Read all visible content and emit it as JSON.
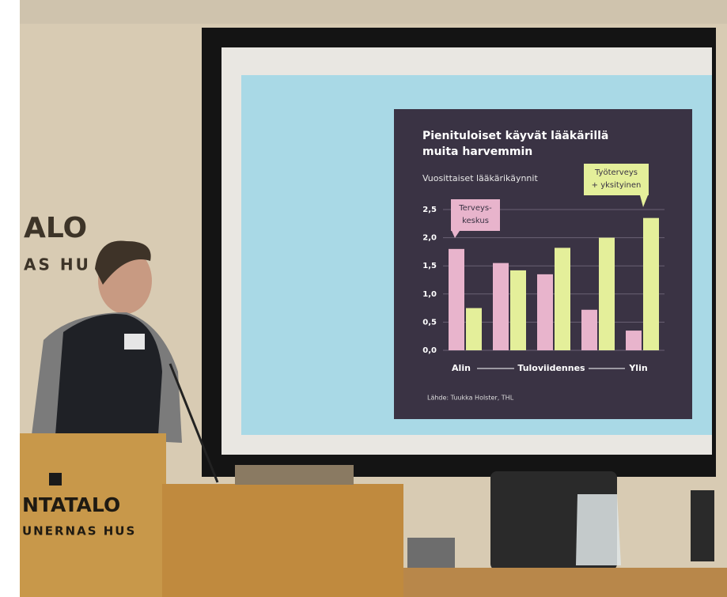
{
  "scene": {
    "wall_sign": [
      "ALO",
      "AS HU"
    ],
    "podium_sign": [
      "NTATALO",
      "UNERNAS HUS"
    ]
  },
  "chart_data": {
    "type": "bar",
    "title": [
      "Pienituloiset käyvät lääkärillä",
      "muita harvemmin"
    ],
    "subtitle": "Vuosittaiset lääkärikäynnit",
    "categories": [
      null,
      null,
      null,
      null,
      null
    ],
    "series": [
      {
        "label": [
          "Terveys-",
          "keskus"
        ],
        "color": "#e8b4cc",
        "values": [
          1.8,
          1.55,
          1.35,
          0.72,
          0.35
        ]
      },
      {
        "label": [
          "Työterveys",
          "+ yksityinen"
        ],
        "color": "#e4ef9a",
        "values": [
          0.75,
          1.42,
          1.82,
          2.0,
          2.35
        ]
      }
    ],
    "x_axis_labels": [
      "Alin",
      "Tuloviidennes",
      "Ylin"
    ],
    "ylim": [
      0,
      2.5
    ],
    "yticks": [
      {
        "value": 0,
        "label": "0,0"
      },
      {
        "value": 0.5,
        "label": "0,5"
      },
      {
        "value": 1,
        "label": "1,0"
      },
      {
        "value": 1.5,
        "label": "1,5"
      },
      {
        "value": 2,
        "label": "2,0"
      },
      {
        "value": 2.5,
        "label": "2,5"
      }
    ],
    "grid": true,
    "source": "Lähde: Tuukka Holster, THL"
  }
}
